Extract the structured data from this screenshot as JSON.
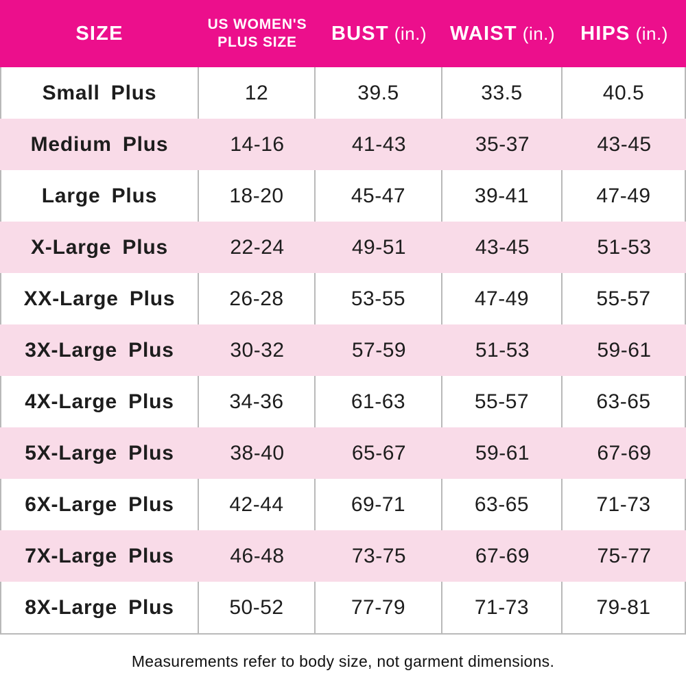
{
  "chart_data": {
    "type": "table",
    "columns": [
      {
        "label": "SIZE"
      },
      {
        "label": "US WOMEN'S PLUS SIZE",
        "line1": "US WOMEN'S",
        "line2": "PLUS SIZE"
      },
      {
        "label": "BUST",
        "unit": "(in.)"
      },
      {
        "label": "WAIST",
        "unit": "(in.)"
      },
      {
        "label": "HIPS",
        "unit": "(in.)"
      }
    ],
    "rows": [
      [
        "Small Plus",
        "12",
        "39.5",
        "33.5",
        "40.5"
      ],
      [
        "Medium Plus",
        "14-16",
        "41-43",
        "35-37",
        "43-45"
      ],
      [
        "Large Plus",
        "18-20",
        "45-47",
        "39-41",
        "47-49"
      ],
      [
        "X-Large Plus",
        "22-24",
        "49-51",
        "43-45",
        "51-53"
      ],
      [
        "XX-Large Plus",
        "26-28",
        "53-55",
        "47-49",
        "55-57"
      ],
      [
        "3X-Large Plus",
        "30-32",
        "57-59",
        "51-53",
        "59-61"
      ],
      [
        "4X-Large Plus",
        "34-36",
        "61-63",
        "55-57",
        "63-65"
      ],
      [
        "5X-Large Plus",
        "38-40",
        "65-67",
        "59-61",
        "67-69"
      ],
      [
        "6X-Large Plus",
        "42-44",
        "69-71",
        "63-65",
        "71-73"
      ],
      [
        "7X-Large Plus",
        "46-48",
        "73-75",
        "67-69",
        "75-77"
      ],
      [
        "8X-Large Plus",
        "50-52",
        "77-79",
        "71-73",
        "79-81"
      ]
    ],
    "layout": {
      "alt_rows_shaded": "even rows pink starting with row 2",
      "grid": "vertical dividers on white rows only"
    }
  },
  "footer": {
    "note": "Measurements refer to body size, not garment dimensions."
  },
  "colors": {
    "header_bg": "#EC0F8C",
    "header_text": "#FFFFFF",
    "alt_row_bg": "#F9DBE8",
    "grid_line": "#B9B9B9",
    "body_text": "#1D1D1D"
  }
}
